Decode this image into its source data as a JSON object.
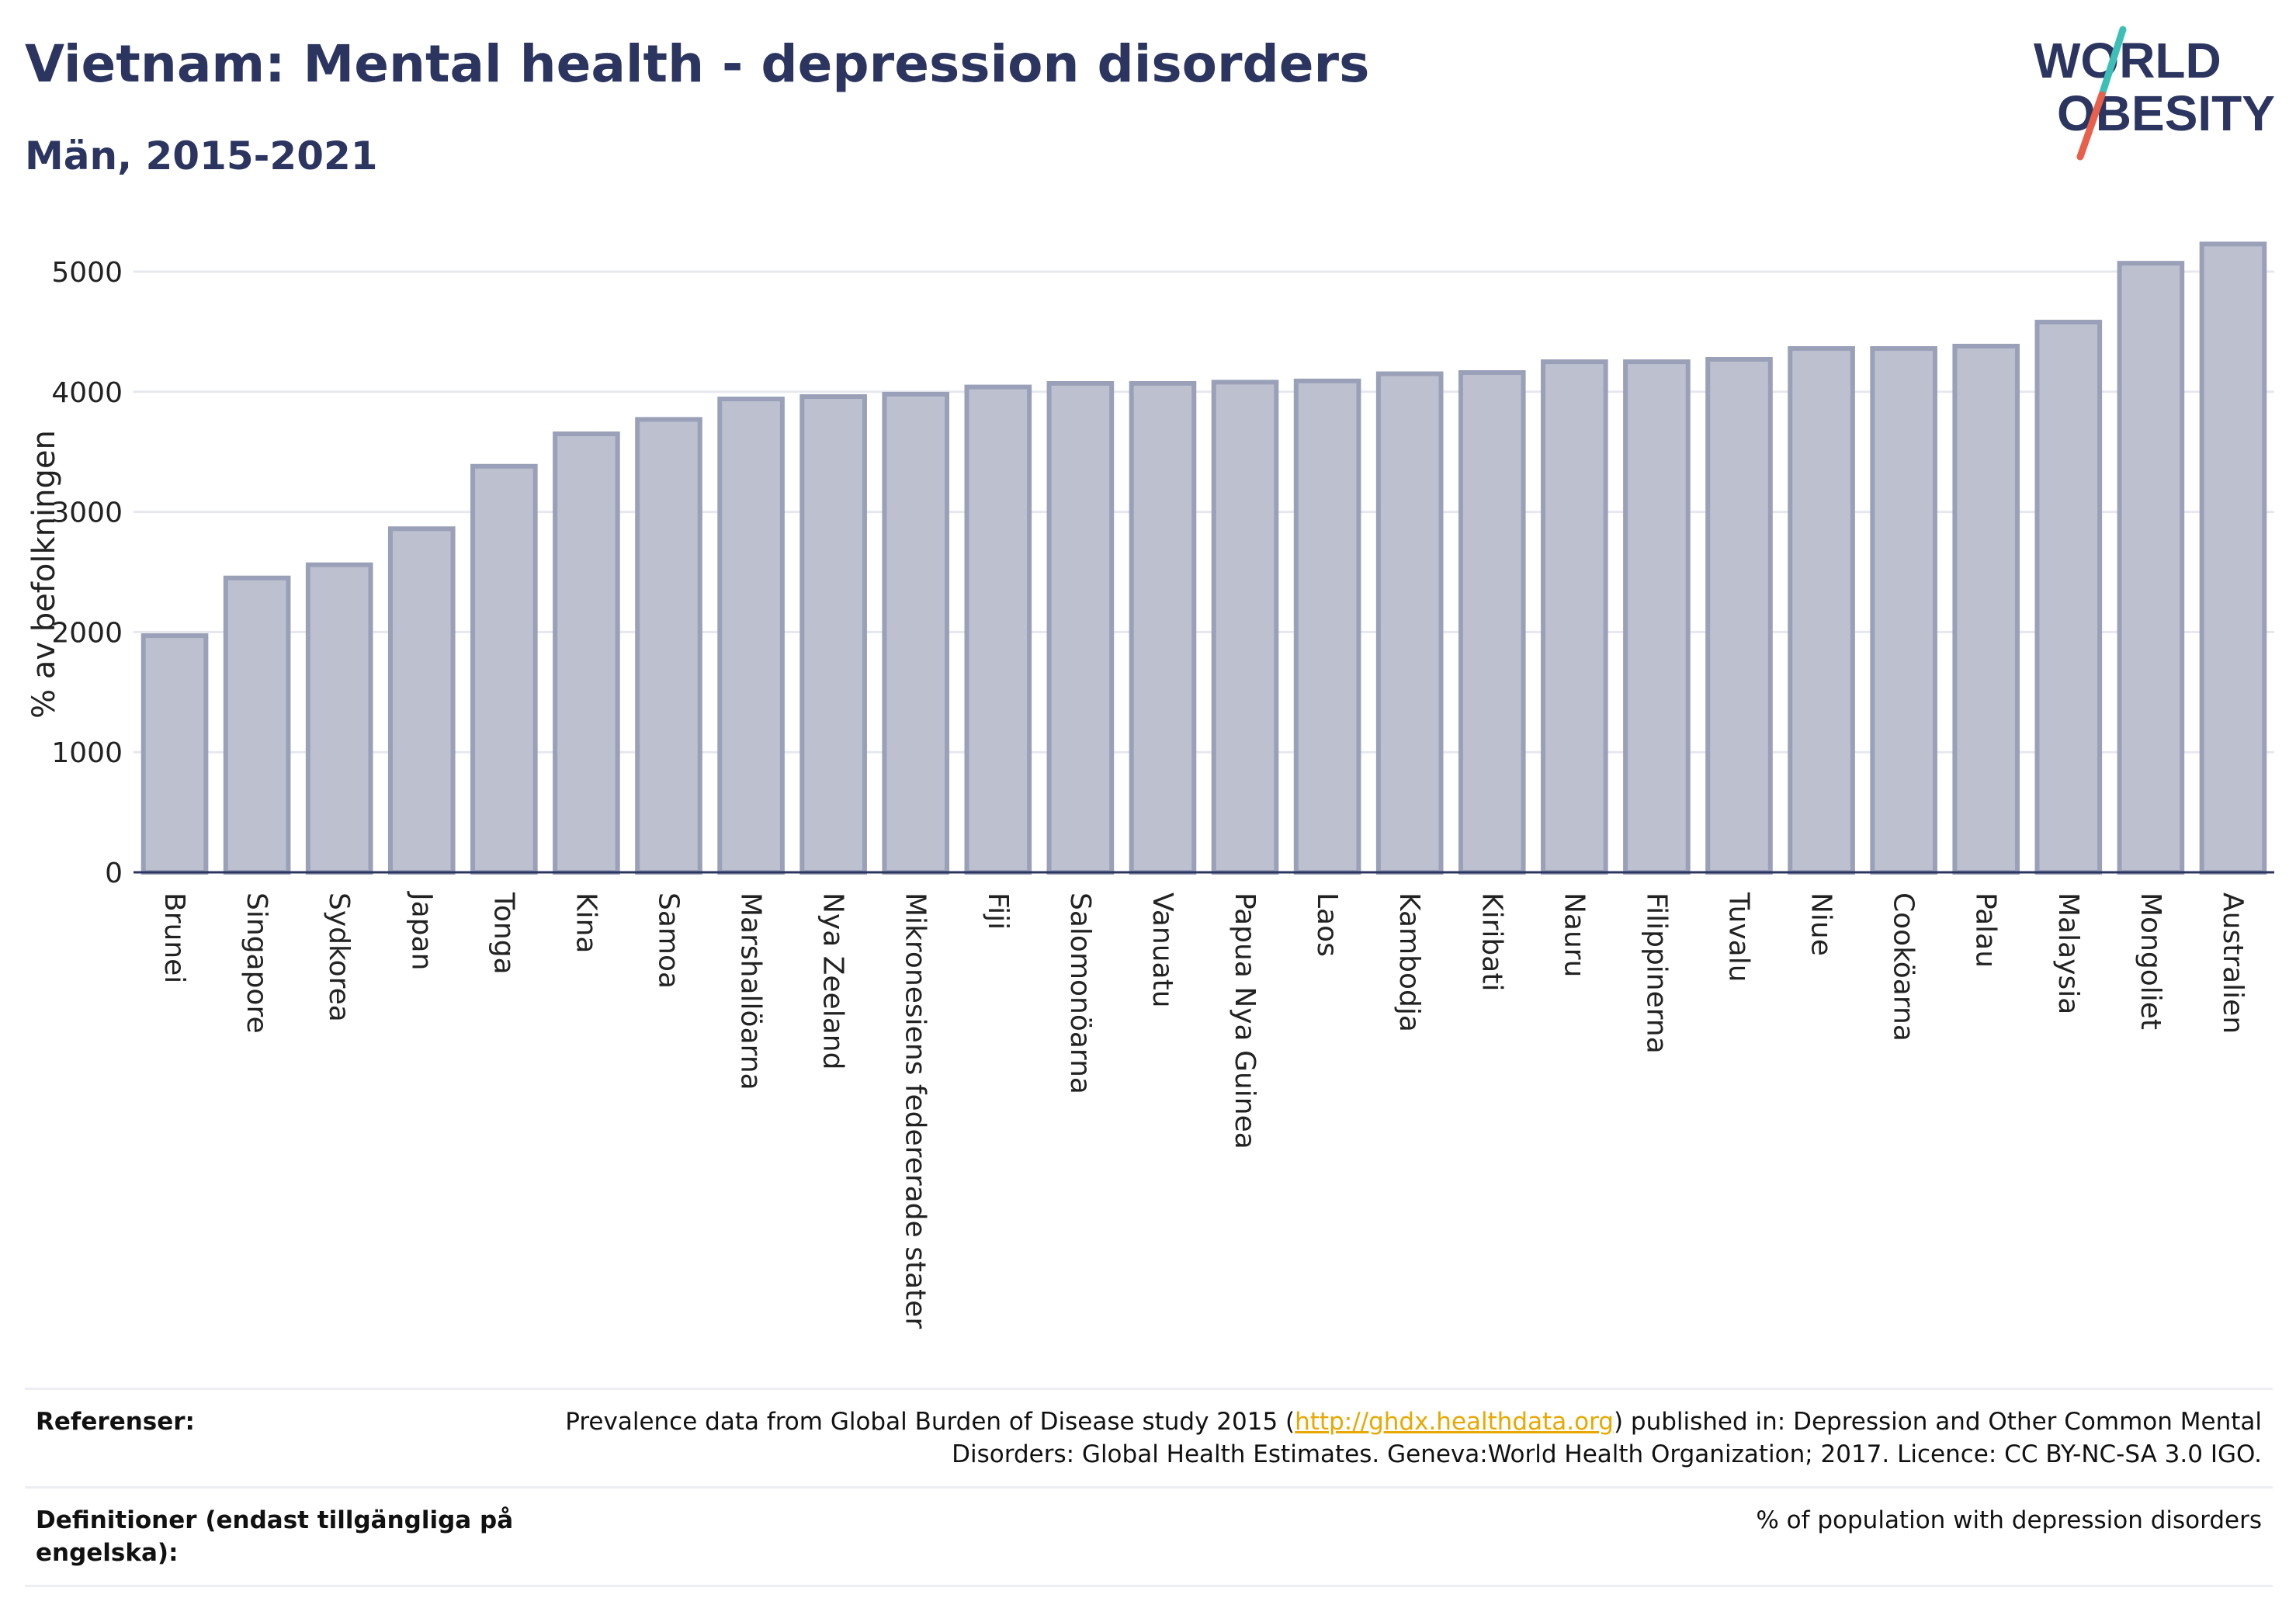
{
  "header": {
    "title": "Vietnam: Mental health - depression disorders",
    "subtitle": "Män, 2015-2021"
  },
  "logo": {
    "line1": "WORLD",
    "line2": "OBESITY",
    "colors": {
      "text": "#2b3560",
      "slash_top": "#3dbfb8",
      "slash_bottom": "#e8604c"
    }
  },
  "chart_data": {
    "type": "bar",
    "title": "",
    "xlabel": "",
    "ylabel": "% av befolkningen",
    "ylim": [
      0,
      5500
    ],
    "yticks": [
      0,
      1000,
      2000,
      3000,
      4000,
      5000
    ],
    "grid": true,
    "bar_color": "#bcc0cf",
    "bar_edge_color": "#9aa0b8",
    "categories": [
      "Brunei",
      "Singapore",
      "Sydkorea",
      "Japan",
      "Tonga",
      "Kina",
      "Samoa",
      "Marshallöarna",
      "Nya Zeeland",
      "Mikronesiens federerade stater",
      "Fiji",
      "Salomonöarna",
      "Vanuatu",
      "Papua Nya Guinea",
      "Laos",
      "Kambodja",
      "Kiribati",
      "Nauru",
      "Filippinerna",
      "Tuvalu",
      "Niue",
      "Cooköarna",
      "Palau",
      "Malaysia",
      "Mongoliet",
      "Australien"
    ],
    "values": [
      1970,
      2450,
      2560,
      2860,
      3380,
      3650,
      3770,
      3940,
      3960,
      3980,
      4040,
      4070,
      4070,
      4080,
      4090,
      4150,
      4160,
      4250,
      4250,
      4270,
      4360,
      4360,
      4380,
      4580,
      5070,
      5230
    ]
  },
  "references": {
    "label": "Referenser:",
    "text_before": "Prevalence data from Global Burden of Disease study 2015 (",
    "link": "http://ghdx.healthdata.org",
    "text_after": ") published in: Depression and Other Common Mental Disorders: Global Health Estimates. Geneva:World Health Organization; 2017. Licence: CC BY-NC-SA 3.0 IGO."
  },
  "definitions": {
    "label": "Definitioner (endast tillgängliga på engelska):",
    "text": "% of population with depression disorders"
  }
}
